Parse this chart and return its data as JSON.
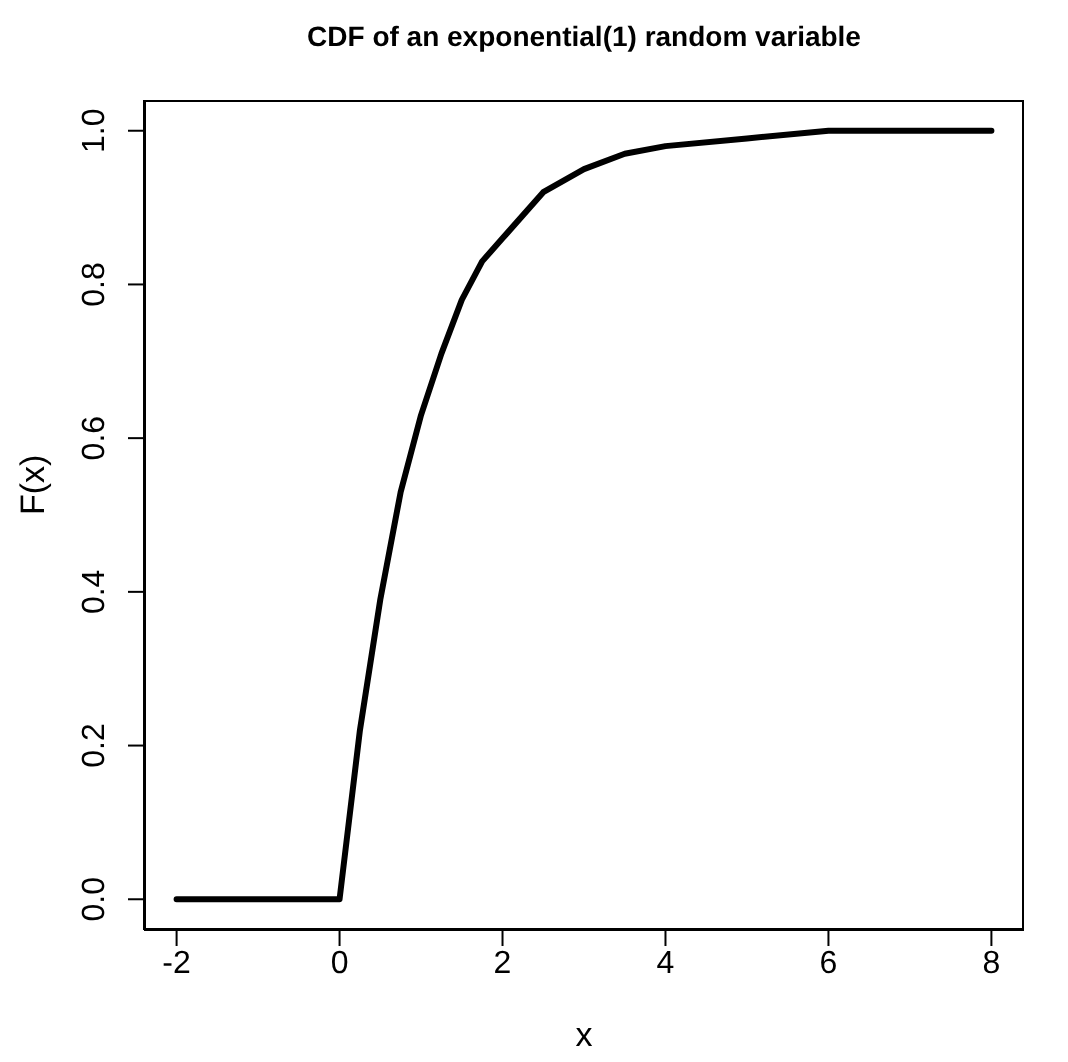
{
  "chart_data": {
    "type": "line",
    "title": "CDF of an exponential(1) random variable",
    "xlabel": "x",
    "ylabel": "F(x)",
    "x": [
      -2,
      0,
      0.25,
      0.5,
      0.75,
      1,
      1.25,
      1.5,
      1.75,
      2,
      2.5,
      3,
      3.5,
      4,
      5,
      6,
      7,
      8
    ],
    "series": [
      {
        "color": "#000000",
        "values": [
          0,
          0,
          0.22,
          0.39,
          0.53,
          0.63,
          0.71,
          0.78,
          0.83,
          0.86,
          0.92,
          0.95,
          0.97,
          0.98,
          0.99,
          1.0,
          1.0,
          1.0
        ]
      }
    ],
    "xlim": [
      -2.4,
      8.4
    ],
    "ylim": [
      -0.04,
      1.04
    ],
    "xticks": [
      -2,
      0,
      2,
      4,
      6,
      8
    ],
    "yticks": [
      {
        "value": 0,
        "label": "0.0"
      },
      {
        "value": 0.2,
        "label": "0.2"
      },
      {
        "value": 0.4,
        "label": "0.4"
      },
      {
        "value": 0.6,
        "label": "0.6"
      },
      {
        "value": 0.8,
        "label": "0.8"
      },
      {
        "value": 1,
        "label": "1.0"
      }
    ],
    "marker": "none",
    "line_style": "solid"
  }
}
